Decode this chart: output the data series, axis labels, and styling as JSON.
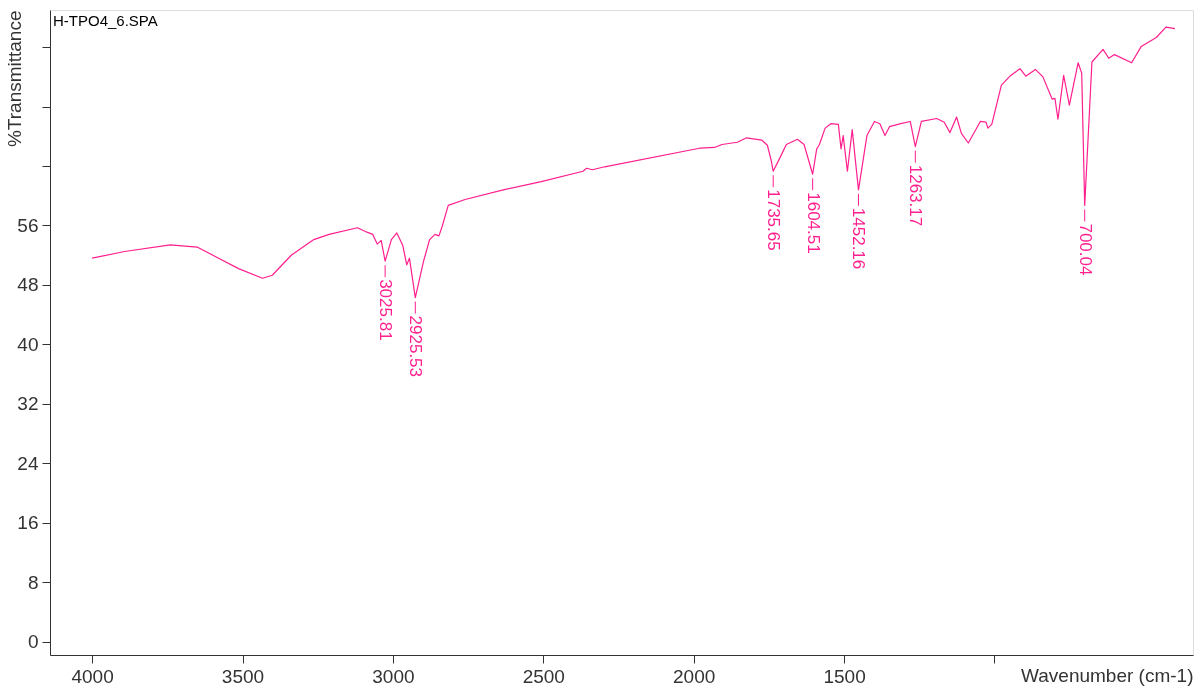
{
  "chart_data": {
    "type": "line",
    "title": "H-TPO4_6.SPA",
    "xlabel": "Wavenumber (cm-1)",
    "ylabel": "%Transmittance",
    "xlim": [
      4140,
      340
    ],
    "xticks": [
      4000,
      3500,
      3000,
      2500,
      2000,
      1500,
      {
        "value": 1000,
        "label": null
      }
    ],
    "ylim": [
      -1.8,
      85
    ],
    "yticks": [
      0,
      8,
      16,
      24,
      32,
      40,
      48,
      56,
      {
        "value": 64,
        "label": null
      },
      {
        "value": 72,
        "label": null
      },
      {
        "value": 80,
        "label": null
      }
    ],
    "grid": false,
    "marker": "none",
    "line_style": "solid",
    "series": [
      {
        "color": "#ff1f8e",
        "x": [
          4000,
          3892,
          3740,
          3651,
          3589,
          3513,
          3433,
          3401,
          3338,
          3263,
          3212,
          3118,
          3086,
          3067,
          3052,
          3039,
          3025.81,
          3005,
          2987,
          2967,
          2954,
          2945,
          2925.53,
          2898,
          2878,
          2860,
          2847,
          2836,
          2816,
          2760,
          2633,
          2507,
          2368,
          2356,
          2337,
          2296,
          1981,
          1931,
          1906,
          1855,
          1824,
          1774,
          1755,
          1742,
          1735.65,
          1711,
          1692,
          1655,
          1633,
          1604.51,
          1591,
          1582,
          1563,
          1544,
          1519,
          1510,
          1503,
          1489,
          1473,
          1452.16,
          1424,
          1399,
          1381,
          1364,
          1349,
          1312,
          1280,
          1263.17,
          1243,
          1192,
          1167,
          1148,
          1126,
          1110,
          1087,
          1047,
          1028,
          1022,
          1009,
          977,
          946,
          915,
          896,
          864,
          839,
          808,
          799,
          789,
          770,
          751,
          722,
          710,
          700.04,
          676,
          639,
          620,
          601,
          544,
          512,
          462,
          430,
          400
        ],
        "values": [
          51.6,
          52.5,
          53.4,
          53.1,
          51.8,
          50.2,
          48.9,
          49.3,
          52.0,
          54.1,
          54.8,
          55.7,
          55.1,
          54.8,
          53.5,
          54.0,
          51.2,
          54.1,
          55.0,
          53.3,
          50.7,
          51.6,
          46.3,
          51.2,
          54.1,
          54.8,
          54.6,
          55.9,
          58.7,
          59.5,
          60.8,
          61.9,
          63.3,
          63.7,
          63.5,
          63.9,
          66.4,
          66.5,
          66.9,
          67.2,
          67.8,
          67.5,
          66.8,
          64.7,
          63.3,
          65.3,
          66.9,
          67.6,
          66.9,
          62.9,
          66.3,
          66.9,
          69.1,
          69.7,
          69.6,
          66.3,
          68.1,
          63.3,
          68.9,
          60.8,
          68.1,
          70.0,
          69.7,
          68.1,
          69.3,
          69.7,
          70.0,
          66.6,
          70.0,
          70.4,
          69.9,
          68.5,
          70.6,
          68.4,
          67.1,
          70.0,
          69.9,
          69.1,
          69.6,
          74.9,
          76.2,
          77.1,
          76.1,
          77.0,
          76.0,
          73.0,
          73.1,
          70.3,
          76.2,
          72.2,
          77.9,
          76.5,
          58.7,
          78.0,
          79.7,
          78.5,
          79.0,
          77.9,
          80.1,
          81.3,
          82.7,
          82.5
        ]
      }
    ],
    "annotations": [
      {
        "text": "3025.81",
        "x": 3025.81,
        "y": 51.2
      },
      {
        "text": "2925.53",
        "x": 2925.53,
        "y": 46.3
      },
      {
        "text": "1735.65",
        "x": 1735.65,
        "y": 63.3
      },
      {
        "text": "1604.51",
        "x": 1604.51,
        "y": 62.9
      },
      {
        "text": "1452.16",
        "x": 1452.16,
        "y": 60.8
      },
      {
        "text": "1263.17",
        "x": 1263.17,
        "y": 66.6
      },
      {
        "text": "700.04",
        "x": 700.04,
        "y": 58.7
      }
    ]
  }
}
